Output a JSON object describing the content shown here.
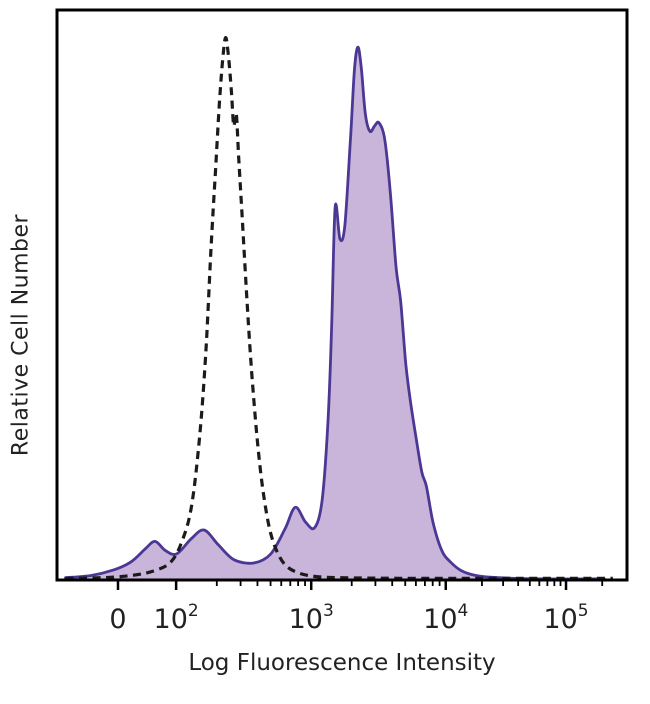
{
  "chart_data": {
    "type": "area",
    "title": "",
    "xlabel": "Log Fluorescence Intensity",
    "ylabel": "Relative Cell Number",
    "ylim": [
      0,
      1
    ],
    "x_axis": {
      "scale": "logicle (fractional positions across plot width, 0 = left edge, 1 = right edge)",
      "ticks": [
        {
          "label": "0",
          "pos": 0.107
        },
        {
          "base": "10",
          "exp": "2",
          "pos": 0.209
        },
        {
          "base": "10",
          "exp": "3",
          "pos": 0.446
        },
        {
          "base": "10",
          "exp": "4",
          "pos": 0.682
        },
        {
          "base": "10",
          "exp": "5",
          "pos": 0.893
        }
      ],
      "minor_decade_starts": [
        0.209,
        0.446,
        0.682,
        0.893
      ],
      "minor_clip": 0.985
    },
    "series": [
      {
        "name": "stained_sample_filled",
        "style": "filled",
        "stroke": "#4b3794",
        "fill": "#c9b4da",
        "stroke_width": 2.8,
        "points": [
          [
            0.015,
            0.004
          ],
          [
            0.06,
            0.008
          ],
          [
            0.1,
            0.018
          ],
          [
            0.13,
            0.032
          ],
          [
            0.155,
            0.055
          ],
          [
            0.172,
            0.068
          ],
          [
            0.19,
            0.052
          ],
          [
            0.21,
            0.046
          ],
          [
            0.235,
            0.072
          ],
          [
            0.258,
            0.088
          ],
          [
            0.283,
            0.062
          ],
          [
            0.31,
            0.036
          ],
          [
            0.345,
            0.03
          ],
          [
            0.375,
            0.046
          ],
          [
            0.4,
            0.09
          ],
          [
            0.418,
            0.128
          ],
          [
            0.436,
            0.102
          ],
          [
            0.452,
            0.092
          ],
          [
            0.465,
            0.14
          ],
          [
            0.4755,
            0.28
          ],
          [
            0.482,
            0.45
          ],
          [
            0.488,
            0.657
          ],
          [
            0.4965,
            0.6
          ],
          [
            0.505,
            0.625
          ],
          [
            0.515,
            0.78
          ],
          [
            0.522,
            0.9
          ],
          [
            0.528,
            0.938
          ],
          [
            0.534,
            0.9
          ],
          [
            0.541,
            0.82
          ],
          [
            0.549,
            0.79
          ],
          [
            0.5575,
            0.8
          ],
          [
            0.565,
            0.805
          ],
          [
            0.575,
            0.775
          ],
          [
            0.585,
            0.68
          ],
          [
            0.595,
            0.55
          ],
          [
            0.603,
            0.49
          ],
          [
            0.612,
            0.38
          ],
          [
            0.62,
            0.315
          ],
          [
            0.63,
            0.25
          ],
          [
            0.64,
            0.19
          ],
          [
            0.648,
            0.165
          ],
          [
            0.66,
            0.1
          ],
          [
            0.675,
            0.052
          ],
          [
            0.69,
            0.032
          ],
          [
            0.71,
            0.016
          ],
          [
            0.735,
            0.008
          ],
          [
            0.775,
            0.004
          ],
          [
            0.85,
            0.002
          ],
          [
            0.96,
            0.002
          ]
        ]
      },
      {
        "name": "isotype_control_dashed",
        "style": "dashed",
        "stroke": "#1b1b1b",
        "stroke_width": 3.2,
        "dash": "8 5.5",
        "points": [
          [
            0.015,
            0.003
          ],
          [
            0.08,
            0.004
          ],
          [
            0.13,
            0.008
          ],
          [
            0.17,
            0.016
          ],
          [
            0.2,
            0.032
          ],
          [
            0.22,
            0.07
          ],
          [
            0.236,
            0.13
          ],
          [
            0.25,
            0.25
          ],
          [
            0.261,
            0.4
          ],
          [
            0.27,
            0.58
          ],
          [
            0.278,
            0.72
          ],
          [
            0.285,
            0.84
          ],
          [
            0.291,
            0.92
          ],
          [
            0.296,
            0.955
          ],
          [
            0.301,
            0.92
          ],
          [
            0.306,
            0.86
          ],
          [
            0.31,
            0.8
          ],
          [
            0.3145,
            0.82
          ],
          [
            0.319,
            0.74
          ],
          [
            0.326,
            0.62
          ],
          [
            0.334,
            0.48
          ],
          [
            0.342,
            0.36
          ],
          [
            0.351,
            0.25
          ],
          [
            0.361,
            0.16
          ],
          [
            0.373,
            0.09
          ],
          [
            0.386,
            0.05
          ],
          [
            0.402,
            0.025
          ],
          [
            0.425,
            0.012
          ],
          [
            0.455,
            0.006
          ],
          [
            0.5,
            0.004
          ],
          [
            0.6,
            0.003
          ],
          [
            0.75,
            0.003
          ],
          [
            0.975,
            0.003
          ]
        ]
      }
    ],
    "colors": {
      "axis": "#000000",
      "text": "#222222",
      "tick": "#000000"
    }
  }
}
